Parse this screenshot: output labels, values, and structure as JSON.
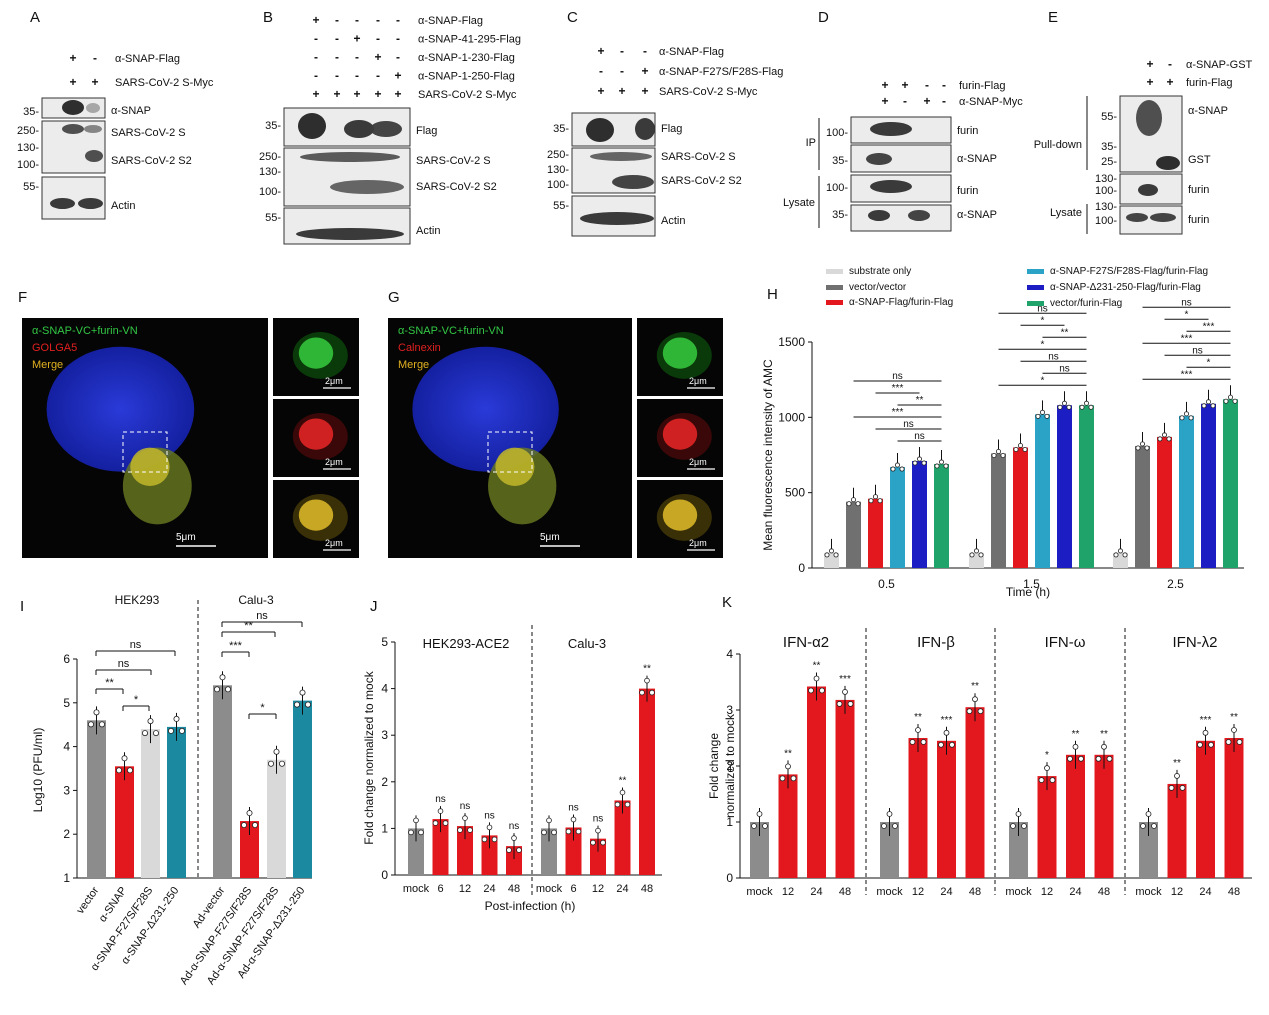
{
  "panels": {
    "A": {
      "letter": "A",
      "rows": [
        {
          "label": "α-SNAP-Flag",
          "signs": [
            "+",
            "-"
          ]
        },
        {
          "label": "SARS-CoV-2 S-Myc",
          "signs": [
            "+",
            "+"
          ]
        }
      ],
      "blots": [
        {
          "markers": [
            "35-"
          ],
          "labels": [
            "α-SNAP"
          ]
        },
        {
          "markers": [
            "250-",
            "130-",
            "100-"
          ],
          "labels": [
            "SARS-CoV-2 S",
            "SARS-CoV-2 S2"
          ]
        },
        {
          "markers": [
            "55-"
          ],
          "labels": [
            "Actin"
          ]
        }
      ]
    },
    "B": {
      "letter": "B",
      "rows": [
        {
          "label": "α-SNAP-Flag",
          "signs": [
            "+",
            "-",
            "-",
            "-",
            "-"
          ]
        },
        {
          "label": "α-SNAP-41-295-Flag",
          "signs": [
            "-",
            "-",
            "+",
            "-",
            "-"
          ]
        },
        {
          "label": "α-SNAP-1-230-Flag",
          "signs": [
            "-",
            "-",
            "-",
            "+",
            "-"
          ]
        },
        {
          "label": "α-SNAP-1-250-Flag",
          "signs": [
            "-",
            "-",
            "-",
            "-",
            "+"
          ]
        },
        {
          "label": "SARS-CoV-2 S-Myc",
          "signs": [
            "+",
            "+",
            "+",
            "+",
            "+"
          ]
        }
      ],
      "blots": [
        {
          "markers": [
            "35-"
          ],
          "labels": [
            "Flag"
          ]
        },
        {
          "markers": [
            "250-",
            "130-",
            "100-"
          ],
          "labels": [
            "SARS-CoV-2 S",
            "SARS-CoV-2 S2"
          ]
        },
        {
          "markers": [
            "55-"
          ],
          "labels": [
            "Actin"
          ]
        }
      ]
    },
    "C": {
      "letter": "C",
      "rows": [
        {
          "label": "α-SNAP-Flag",
          "signs": [
            "+",
            "-",
            "-"
          ]
        },
        {
          "label": "α-SNAP-F27S/F28S-Flag",
          "signs": [
            "-",
            "-",
            "+"
          ]
        },
        {
          "label": "SARS-CoV-2 S-Myc",
          "signs": [
            "+",
            "+",
            "+"
          ]
        }
      ],
      "blots": [
        {
          "markers": [
            "35-"
          ],
          "labels": [
            "Flag"
          ]
        },
        {
          "markers": [
            "250-",
            "130-",
            "100-"
          ],
          "labels": [
            "SARS-CoV-2 S",
            "SARS-CoV-2 S2"
          ]
        },
        {
          "markers": [
            "55-"
          ],
          "labels": [
            "Actin"
          ]
        }
      ]
    },
    "D": {
      "letter": "D",
      "rows": [
        {
          "label": "furin-Flag",
          "signs": [
            "+",
            "+",
            "-",
            "-"
          ]
        },
        {
          "label": "α-SNAP-Myc",
          "signs": [
            "+",
            "-",
            "+",
            "-"
          ]
        }
      ],
      "sections": [
        "IP",
        "Lysate"
      ],
      "blots": [
        {
          "markers": [
            "100-"
          ],
          "labels": [
            "furin"
          ]
        },
        {
          "markers": [
            "35-"
          ],
          "labels": [
            "α-SNAP"
          ]
        },
        {
          "markers": [
            "100-"
          ],
          "labels": [
            "furin"
          ]
        },
        {
          "markers": [
            "35-"
          ],
          "labels": [
            "α-SNAP"
          ]
        }
      ]
    },
    "E": {
      "letter": "E",
      "rows": [
        {
          "label": "α-SNAP-GST",
          "signs": [
            "+",
            "-"
          ]
        },
        {
          "label": "furin-Flag",
          "signs": [
            "+",
            "+"
          ]
        }
      ],
      "sections": [
        "Pull-down",
        "Lysate"
      ],
      "blots": [
        {
          "markers": [
            "55-",
            "35-",
            "25-"
          ],
          "labels": [
            "α-SNAP",
            "GST"
          ]
        },
        {
          "markers": [
            "130-",
            "100-"
          ],
          "labels": [
            "furin"
          ]
        },
        {
          "markers": [
            "130-",
            "100-"
          ],
          "labels": [
            "furin"
          ]
        }
      ]
    },
    "F": {
      "letter": "F",
      "legend": [
        "α-SNAP-VC+furin-VN",
        "GOLGA5",
        "Merge"
      ],
      "scale_main": "5μm",
      "scale_zoom": [
        "2μm",
        "2μm",
        "2μm"
      ]
    },
    "G": {
      "letter": "G",
      "legend": [
        "α-SNAP-VC+furin-VN",
        "Calnexin",
        "Merge"
      ],
      "scale_main": "5μm",
      "scale_zoom": [
        "2μm",
        "2μm",
        "2μm"
      ]
    }
  },
  "chart_data": [
    {
      "panel": "H",
      "type": "bar",
      "ylabel": "Mean fluorescence intensity of AMC",
      "xlabel": "Time (h)",
      "ylim": [
        0,
        1500
      ],
      "yticks": [
        "0",
        "500",
        "1000",
        "1500"
      ],
      "categories": [
        "0.5",
        "1.5",
        "2.5"
      ],
      "series": [
        {
          "name": "substrate only",
          "color": "#d9d9d9",
          "values": [
            100,
            100,
            100
          ]
        },
        {
          "name": "vector/vector",
          "color": "#707070",
          "values": [
            440,
            760,
            810
          ]
        },
        {
          "name": "α-SNAP-Flag/furin-Flag",
          "color": "#e3181f",
          "values": [
            460,
            800,
            870
          ]
        },
        {
          "name": "α-SNAP-F27S/F28S-Flag/furin-Flag",
          "color": "#2aa3c7",
          "values": [
            670,
            1020,
            1010
          ]
        },
        {
          "name": "α-SNAP-Δ231-250-Flag/furin-Flag",
          "color": "#1d1dc4",
          "values": [
            710,
            1080,
            1090
          ]
        },
        {
          "name": "vector/furin-Flag",
          "color": "#1fa36a",
          "values": [
            690,
            1080,
            1120
          ]
        }
      ],
      "significance": [
        [
          "ns",
          "***",
          "**",
          "***",
          "ns",
          "ns"
        ],
        [
          "ns",
          "*",
          "**",
          "*",
          "ns",
          "ns",
          "*"
        ],
        [
          "ns",
          "*",
          "***",
          "***",
          "ns",
          "*",
          "***"
        ]
      ]
    },
    {
      "panel": "I",
      "type": "bar",
      "ylabel": "Log10 (PFU/ml)",
      "ylim": [
        1,
        6
      ],
      "yticks": [
        "1",
        "2",
        "3",
        "4",
        "5",
        "6"
      ],
      "groups": [
        "HEK293",
        "Calu-3"
      ],
      "categories": [
        "vector",
        "α-SNAP",
        "α-SNAP-F27S/F28S",
        "α-SNAP-Δ231-250",
        "Ad-vector",
        "Ad-α-SNAP-F27S/F28S",
        "Ad-α-SNAP-F27S/F28S",
        "Ad-α-SNAP-Δ231-250"
      ],
      "values": [
        4.6,
        3.55,
        4.4,
        4.45,
        5.4,
        2.3,
        3.7,
        5.05
      ],
      "colors": [
        "#8c8c8c",
        "#e3181f",
        "#d9d9d9",
        "#1b8aa0",
        "#8c8c8c",
        "#e3181f",
        "#d9d9d9",
        "#1b8aa0"
      ],
      "significance": [
        "ns",
        "ns",
        "**",
        "*",
        "ns",
        "**",
        "***",
        "*"
      ]
    },
    {
      "panel": "J",
      "type": "bar",
      "ylabel": "Fold change normalized to mock",
      "xlabel": "Post-infection (h)",
      "ylim": [
        0,
        5
      ],
      "yticks": [
        "0",
        "1",
        "2",
        "3",
        "4",
        "5"
      ],
      "groups": [
        {
          "name": "HEK293-ACE2",
          "categories": [
            "mock",
            "6",
            "12",
            "24",
            "48"
          ],
          "values": [
            1.0,
            1.2,
            1.05,
            0.85,
            0.62
          ],
          "labels": [
            "",
            "ns",
            "ns",
            "ns",
            "ns"
          ]
        },
        {
          "name": "Calu-3",
          "categories": [
            "mock",
            "6",
            "12",
            "24",
            "48"
          ],
          "values": [
            1.0,
            1.02,
            0.78,
            1.6,
            4.0
          ],
          "labels": [
            "",
            "ns",
            "ns",
            "**",
            "**"
          ]
        }
      ]
    },
    {
      "panel": "K",
      "type": "bar",
      "ylabel": "Fold change normalized to mock",
      "ylim": [
        0,
        4
      ],
      "yticks": [
        "0",
        "1",
        "2",
        "3",
        "4"
      ],
      "groups": [
        {
          "name": "IFN-α2",
          "categories": [
            "mock",
            "12",
            "24",
            "48"
          ],
          "values": [
            1.0,
            1.85,
            3.42,
            3.18
          ],
          "labels": [
            "",
            "**",
            "**",
            "***"
          ]
        },
        {
          "name": "IFN-β",
          "categories": [
            "mock",
            "12",
            "24",
            "48"
          ],
          "values": [
            1.0,
            2.5,
            2.45,
            3.05
          ],
          "labels": [
            "",
            "**",
            "***",
            "**"
          ]
        },
        {
          "name": "IFN-ω",
          "categories": [
            "mock",
            "12",
            "24",
            "48"
          ],
          "values": [
            1.0,
            1.82,
            2.2,
            2.2
          ],
          "labels": [
            "",
            "*",
            "**",
            "**"
          ]
        },
        {
          "name": "IFN-λ2",
          "categories": [
            "mock",
            "12",
            "24",
            "48"
          ],
          "values": [
            1.0,
            1.68,
            2.45,
            2.5
          ],
          "labels": [
            "",
            "**",
            "***",
            "**"
          ]
        }
      ]
    }
  ],
  "panel_letters": {
    "H": "H",
    "I": "I",
    "J": "J",
    "K": "K"
  }
}
